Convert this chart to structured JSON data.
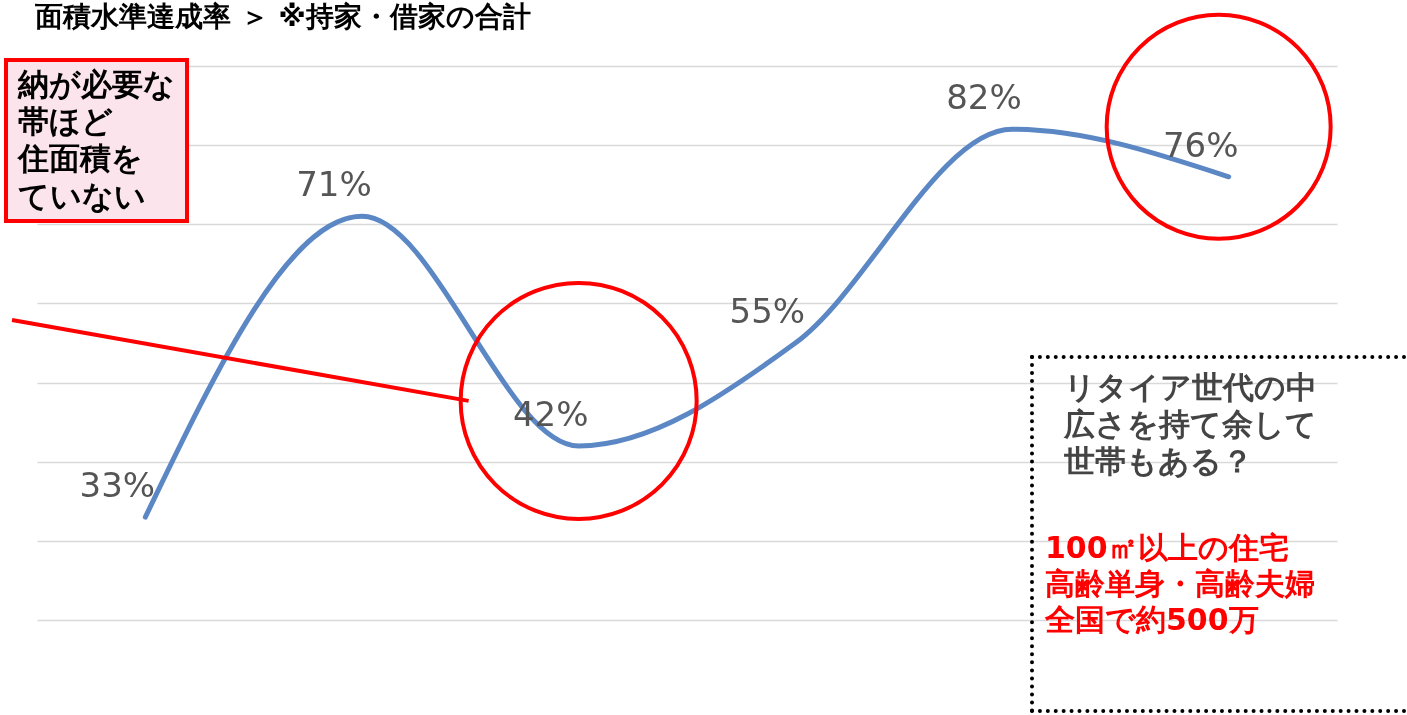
{
  "chart_data": {
    "type": "line",
    "title": "面積水準達成率 ＞ ※持家・借家の合計",
    "categories": [
      null,
      null,
      null,
      null,
      null,
      null
    ],
    "series": [
      {
        "color": "#5b87c5",
        "values": [
          33,
          71,
          42,
          55,
          82,
          76
        ],
        "value_labels": [
          "33%",
          "71%",
          "42%",
          "55%",
          "82%",
          "76%"
        ]
      }
    ],
    "yticks": [
      {
        "value": 20,
        "label": null
      },
      {
        "value": 30,
        "label": null
      },
      {
        "value": 40,
        "label": null
      },
      {
        "value": 50,
        "label": null
      },
      {
        "value": 60,
        "label": null
      },
      {
        "value": 70,
        "label": null
      },
      {
        "value": 80,
        "label": null
      },
      {
        "value": 90,
        "label": null
      }
    ],
    "grid": "y",
    "line_style": "solid",
    "annotations": [
      "納が必要な",
      "帯ほど",
      "住面積を",
      "ていない",
      "リタイア世代の中",
      "広さを持て余して",
      "世帯もある？",
      "100㎡以上の住宅",
      "高齢単身・高齢夫婦",
      "全国で約500万"
    ]
  }
}
